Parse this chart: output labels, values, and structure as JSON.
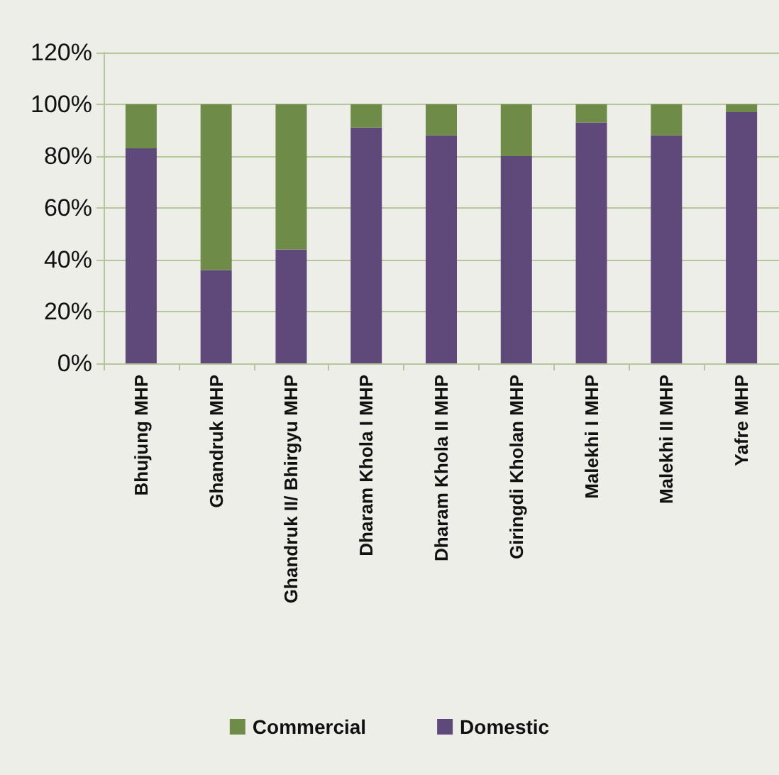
{
  "chart_data": {
    "type": "bar",
    "stacked": true,
    "categories": [
      "Bhujung MHP",
      "Ghandruk MHP",
      "Ghandruk II/ Bhirgyu MHP",
      "Dharam Khola I MHP",
      "Dharam Khola II MHP",
      "Giringdi Kholan MHP",
      "Malekhi I MHP",
      "Malekhi II MHP",
      "Yafre MHP"
    ],
    "series": [
      {
        "name": "Domestic",
        "color": "#5f497a",
        "values": [
          83,
          36,
          44,
          91,
          88,
          80,
          93,
          88,
          97
        ]
      },
      {
        "name": "Commercial",
        "color": "#6e8c48",
        "values": [
          17,
          64,
          56,
          9,
          12,
          20,
          7,
          12,
          3
        ]
      }
    ],
    "ylim": [
      0,
      120
    ],
    "yticks": [
      {
        "value": 0,
        "label": "0%"
      },
      {
        "value": 20,
        "label": "20%"
      },
      {
        "value": 40,
        "label": "40%"
      },
      {
        "value": 60,
        "label": "60%"
      },
      {
        "value": 80,
        "label": "80%"
      },
      {
        "value": 100,
        "label": "100%"
      },
      {
        "value": 120,
        "label": "120%"
      }
    ],
    "grid": "y",
    "legend": "bottom"
  }
}
